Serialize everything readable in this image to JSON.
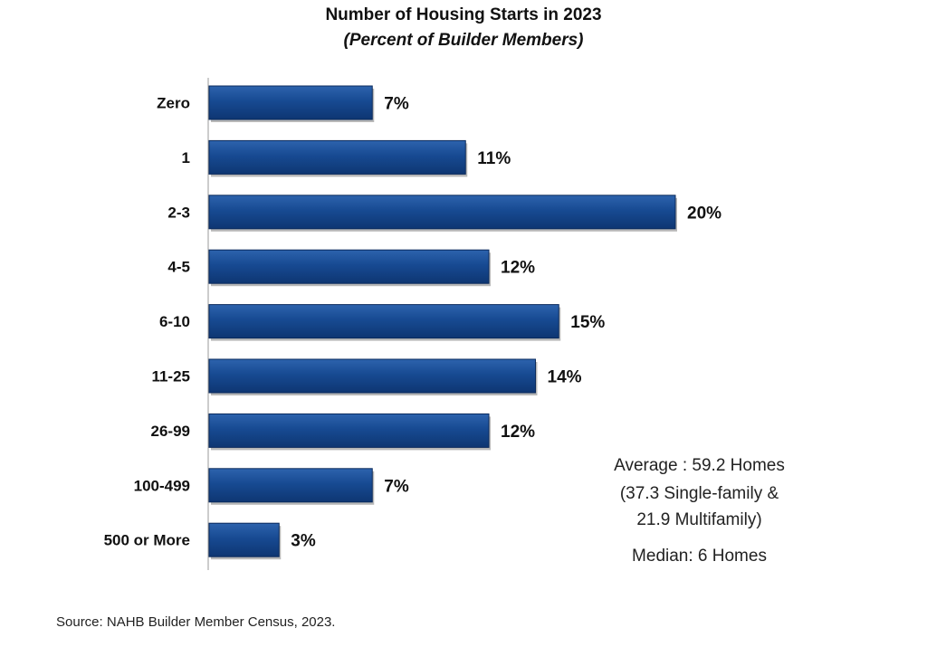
{
  "chart_data": {
    "type": "bar",
    "orientation": "horizontal",
    "title": "Number of Housing Starts in 2023",
    "subtitle": "(Percent of Builder Members)",
    "categories": [
      "Zero",
      "1",
      "2-3",
      "4-5",
      "6-10",
      "11-25",
      "26-99",
      "100-499",
      "500 or More"
    ],
    "values": [
      7,
      11,
      20,
      12,
      15,
      14,
      12,
      7,
      3
    ],
    "value_labels": [
      "7%",
      "11%",
      "20%",
      "12%",
      "15%",
      "14%",
      "12%",
      "7%",
      "3%"
    ],
    "xlim": [
      0,
      20
    ],
    "grid": false,
    "legend": "none",
    "bar_color": "#1a4a8c"
  },
  "annotations": {
    "average_line1": "Average : 59.2 Homes",
    "average_line2": "(37.3 Single-family &",
    "average_line3": "21.9 Multifamily)",
    "median": "Median: 6 Homes"
  },
  "source": "Source: NAHB Builder Member Census, 2023."
}
